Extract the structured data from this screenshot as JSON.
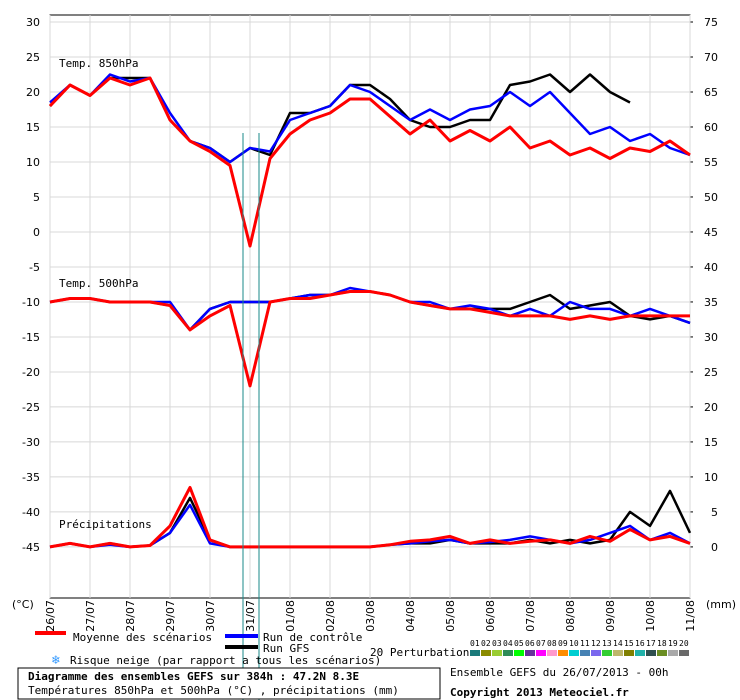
{
  "chart_data": {
    "type": "line",
    "title": "Diagramme des ensembles GEFS sur 384h : 47.2N 8.3E",
    "subtitle": "Températures 850hPa et 500hPa (°C) , précipitations (mm)",
    "ylabel": "(°C)",
    "y2label": "(mm)",
    "categories": [
      "26/07",
      null,
      "27/07",
      null,
      "28/07",
      null,
      "29/07",
      null,
      "30/07",
      null,
      "31/07",
      null,
      "01/08",
      null,
      "02/08",
      null,
      "03/08",
      null,
      "04/08",
      null,
      "05/08",
      null,
      "06/08",
      null,
      "07/08",
      null,
      "08/08",
      null,
      "09/08",
      null,
      "10/08",
      null,
      "11/08"
    ],
    "ylim": [
      -52.3,
      31
    ],
    "yticks": [
      30,
      25,
      20,
      15,
      10,
      5,
      0,
      -5,
      -10,
      -15,
      -20,
      -25,
      -30,
      -35,
      -40,
      -45
    ],
    "y2lim": [
      -7.3,
      76
    ],
    "y2ticks": [
      75,
      70,
      65,
      60,
      55,
      50,
      45,
      40,
      35,
      30,
      25,
      20,
      15,
      10,
      5,
      0
    ],
    "grid": true,
    "legend": [
      {
        "name": "Moyenne des scénarios",
        "color": "#ff0000"
      },
      {
        "name": "Run de contrôle",
        "color": "#0000ff"
      },
      {
        "name": "Run GFS",
        "color": "#000000"
      }
    ],
    "snow_note": "Risque neige (par rapport a tous les scénarios)",
    "perturbations_label": "20 Perturbations",
    "perturbations": [
      {
        "code": "01",
        "color": "#1a7a7a"
      },
      {
        "code": "02",
        "color": "#8b8b00"
      },
      {
        "code": "03",
        "color": "#9acd32"
      },
      {
        "code": "04",
        "color": "#2e8b57"
      },
      {
        "code": "05",
        "color": "#00ff00"
      },
      {
        "code": "06",
        "color": "#663399"
      },
      {
        "code": "07",
        "color": "#ff00ff"
      },
      {
        "code": "08",
        "color": "#ff99cc"
      },
      {
        "code": "09",
        "color": "#ff8c00"
      },
      {
        "code": "10",
        "color": "#00ced1"
      },
      {
        "code": "11",
        "color": "#4682b4"
      },
      {
        "code": "12",
        "color": "#7b68ee"
      },
      {
        "code": "13",
        "color": "#32cd32"
      },
      {
        "code": "14",
        "color": "#bdb76b"
      },
      {
        "code": "15",
        "color": "#808000"
      },
      {
        "code": "16",
        "color": "#20b2aa"
      },
      {
        "code": "17",
        "color": "#2f4f4f"
      },
      {
        "code": "18",
        "color": "#6b8e23"
      },
      {
        "code": "19",
        "color": "#a9a9a9"
      },
      {
        "code": "20",
        "color": "#696969"
      }
    ],
    "run_info": "Ensemble GEFS du 26/07/2013 - 00h",
    "copyright": "Copyright 2013 Meteociel.fr",
    "panels": [
      {
        "label": "Temp. 850hPa",
        "axis": "y",
        "series": [
          {
            "color": "#ff0000",
            "values": [
              18,
              21,
              19.5,
              22,
              21,
              22,
              16,
              13,
              11.5,
              9.5,
              -2,
              10.5,
              14,
              16,
              17,
              19,
              19,
              16.5,
              14,
              16,
              13,
              14.5,
              13,
              15,
              12,
              13,
              11,
              12,
              10.5,
              12,
              11.5,
              13,
              11
            ]
          },
          {
            "color": "#0000ff",
            "values": [
              18.5,
              21,
              19.5,
              22.5,
              21.5,
              22,
              17,
              13,
              12,
              10,
              12,
              11.5,
              16,
              17,
              18,
              21,
              20,
              18,
              16,
              17.5,
              16,
              17.5,
              18,
              20,
              18,
              20,
              17,
              14,
              15,
              13,
              14,
              12,
              11
            ]
          },
          {
            "color": "#000000",
            "values": [
              18,
              21,
              19.5,
              22,
              22,
              22,
              16,
              13,
              12,
              10,
              12,
              11,
              17,
              17,
              18,
              21,
              21,
              19,
              16,
              15,
              15,
              16,
              16,
              21,
              21.5,
              22.5,
              20,
              22.5,
              20,
              18.5,
              null,
              null,
              null
            ]
          }
        ]
      },
      {
        "label": "Temp. 500hPa",
        "axis": "y",
        "series": [
          {
            "color": "#ff0000",
            "values": [
              -10,
              -9.5,
              -9.5,
              -10,
              -10,
              -10,
              -10.5,
              -14,
              -12,
              -10.5,
              -22,
              -10,
              -9.5,
              -9.5,
              -9,
              -8.5,
              -8.5,
              -9,
              -10,
              -10.5,
              -11,
              -11,
              -11.5,
              -12,
              -12,
              -12,
              -12.5,
              -12,
              -12.5,
              -12,
              -12,
              -12,
              -12
            ]
          },
          {
            "color": "#0000ff",
            "values": [
              -10,
              -9.5,
              -9.5,
              -10,
              -10,
              -10,
              -10,
              -14,
              -11,
              -10,
              -10,
              -10,
              -9.5,
              -9,
              -9,
              -8,
              -8.5,
              -9,
              -10,
              -10,
              -11,
              -10.5,
              -11,
              -12,
              -11,
              -12,
              -10,
              -11,
              -11,
              -12,
              -11,
              -12,
              -13
            ]
          },
          {
            "color": "#000000",
            "values": [
              -10,
              -9.5,
              -9.5,
              -10,
              -10,
              -10,
              -10.5,
              -14,
              -11,
              -10,
              -10,
              -10,
              -9.5,
              -9,
              -9,
              -8.5,
              -8.5,
              -9,
              -10,
              -10.5,
              -11,
              -11,
              -11,
              -11,
              -10,
              -9,
              -11,
              -10.5,
              -10,
              -12,
              -12.5,
              -12,
              -13
            ]
          }
        ]
      },
      {
        "label": "Précipitations",
        "axis": "y2",
        "series": [
          {
            "color": "#ff0000",
            "values": [
              0,
              0.5,
              0,
              0.5,
              0,
              0.2,
              3,
              8.5,
              1,
              0,
              0,
              0,
              0,
              0,
              0,
              0,
              0,
              0.3,
              0.8,
              1,
              1.5,
              0.5,
              1,
              0.5,
              0.8,
              1,
              0.5,
              1.5,
              0.8,
              2.5,
              1,
              1.5,
              0.5
            ]
          },
          {
            "color": "#0000ff",
            "values": [
              0,
              0.5,
              0,
              0.3,
              0,
              0.2,
              2,
              6,
              0.5,
              0,
              0,
              0,
              0,
              0,
              0,
              0,
              0,
              0.3,
              0.5,
              0.8,
              1,
              0.5,
              0.7,
              1,
              1.5,
              1,
              0.5,
              1,
              2,
              3,
              1,
              2,
              0.5
            ]
          },
          {
            "color": "#000000",
            "values": [
              0,
              0.5,
              0,
              0.5,
              0,
              0.2,
              2,
              7,
              1,
              0,
              0,
              0,
              0,
              0,
              0,
              0,
              0,
              0.3,
              0.5,
              0.5,
              1,
              0.5,
              0.5,
              0.5,
              1,
              0.5,
              1,
              0.5,
              1,
              5,
              3,
              8,
              2
            ]
          }
        ]
      }
    ]
  }
}
